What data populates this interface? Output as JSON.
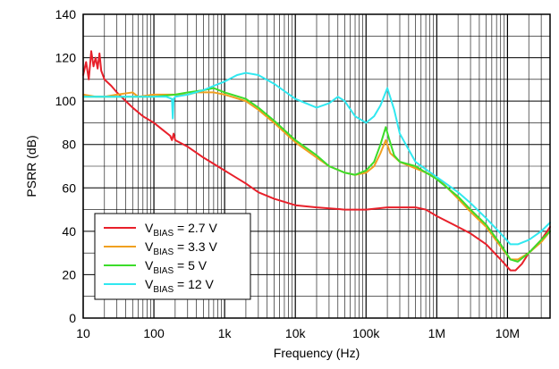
{
  "chart_data": {
    "type": "line",
    "title": "",
    "xlabel": "Frequency (Hz)",
    "ylabel": "PSRR (dB)",
    "xscale": "log",
    "xlim": [
      10,
      40000000
    ],
    "ylim": [
      0,
      140
    ],
    "grid": true,
    "legend_position": "bottom-left",
    "x_ticks": [
      {
        "value": 10,
        "label": "10"
      },
      {
        "value": 100,
        "label": "100"
      },
      {
        "value": 1000,
        "label": "1k"
      },
      {
        "value": 10000,
        "label": "10k"
      },
      {
        "value": 100000,
        "label": "100k"
      },
      {
        "value": 1000000,
        "label": "1M"
      },
      {
        "value": 10000000,
        "label": "10M"
      }
    ],
    "y_ticks": [
      0,
      20,
      40,
      60,
      80,
      100,
      120,
      140
    ],
    "series": [
      {
        "name": "V_BIAS = 2.7 V",
        "label_main": "V",
        "label_sub": "BIAS",
        "label_rest": " = 2.7 V",
        "color": "#e8202a",
        "points": [
          [
            10,
            112
          ],
          [
            11,
            118
          ],
          [
            12,
            110
          ],
          [
            13,
            123
          ],
          [
            14,
            116
          ],
          [
            15,
            120
          ],
          [
            16,
            115
          ],
          [
            17,
            122
          ],
          [
            18,
            114
          ],
          [
            20,
            110
          ],
          [
            25,
            107
          ],
          [
            30,
            104
          ],
          [
            40,
            100
          ],
          [
            50,
            97
          ],
          [
            70,
            93
          ],
          [
            100,
            90
          ],
          [
            130,
            87
          ],
          [
            170,
            84
          ],
          [
            180,
            82
          ],
          [
            190,
            85
          ],
          [
            200,
            82
          ],
          [
            300,
            79
          ],
          [
            500,
            74
          ],
          [
            1000,
            68
          ],
          [
            2000,
            62
          ],
          [
            3000,
            58
          ],
          [
            5000,
            55
          ],
          [
            10000,
            52
          ],
          [
            20000,
            51
          ],
          [
            50000,
            50
          ],
          [
            100000,
            50
          ],
          [
            200000,
            51
          ],
          [
            500000,
            51
          ],
          [
            700000,
            50
          ],
          [
            1000000,
            47
          ],
          [
            2000000,
            42
          ],
          [
            3000000,
            39
          ],
          [
            5000000,
            34
          ],
          [
            8000000,
            27
          ],
          [
            11000000,
            22
          ],
          [
            13000000,
            22
          ],
          [
            16000000,
            25
          ],
          [
            20000000,
            30
          ],
          [
            30000000,
            36
          ],
          [
            40000000,
            42
          ]
        ]
      },
      {
        "name": "V_BIAS = 3.3 V",
        "label_main": "V",
        "label_sub": "BIAS",
        "label_rest": " = 3.3 V",
        "color": "#f0a020",
        "points": [
          [
            10,
            103
          ],
          [
            15,
            102
          ],
          [
            20,
            102
          ],
          [
            30,
            103
          ],
          [
            50,
            104
          ],
          [
            60,
            102
          ],
          [
            100,
            103
          ],
          [
            200,
            103
          ],
          [
            300,
            103
          ],
          [
            400,
            104
          ],
          [
            500,
            104
          ],
          [
            700,
            104
          ],
          [
            1000,
            103
          ],
          [
            2000,
            100
          ],
          [
            3000,
            96
          ],
          [
            5000,
            90
          ],
          [
            10000,
            81
          ],
          [
            20000,
            74
          ],
          [
            30000,
            70
          ],
          [
            50000,
            67
          ],
          [
            70000,
            66
          ],
          [
            100000,
            67
          ],
          [
            130000,
            70
          ],
          [
            160000,
            76
          ],
          [
            190000,
            82
          ],
          [
            220000,
            76
          ],
          [
            300000,
            72
          ],
          [
            500000,
            69
          ],
          [
            1000000,
            65
          ],
          [
            2000000,
            55
          ],
          [
            3000000,
            49
          ],
          [
            5000000,
            42
          ],
          [
            8000000,
            33
          ],
          [
            11000000,
            27
          ],
          [
            14000000,
            27
          ],
          [
            20000000,
            30
          ],
          [
            30000000,
            35
          ],
          [
            40000000,
            40
          ]
        ]
      },
      {
        "name": "V_BIAS = 5 V",
        "label_main": "V",
        "label_sub": "BIAS",
        "label_rest": " = 5 V",
        "color": "#3cdc2a",
        "points": [
          [
            10,
            102
          ],
          [
            20,
            102
          ],
          [
            50,
            102
          ],
          [
            100,
            102
          ],
          [
            200,
            103
          ],
          [
            300,
            104
          ],
          [
            500,
            105
          ],
          [
            700,
            106
          ],
          [
            1000,
            104
          ],
          [
            2000,
            101
          ],
          [
            3000,
            97
          ],
          [
            5000,
            91
          ],
          [
            10000,
            82
          ],
          [
            20000,
            75
          ],
          [
            30000,
            70
          ],
          [
            50000,
            67
          ],
          [
            70000,
            66
          ],
          [
            100000,
            68
          ],
          [
            130000,
            72
          ],
          [
            160000,
            80
          ],
          [
            190000,
            88
          ],
          [
            210000,
            83
          ],
          [
            250000,
            75
          ],
          [
            300000,
            72
          ],
          [
            500000,
            70
          ],
          [
            1000000,
            64
          ],
          [
            2000000,
            56
          ],
          [
            3000000,
            50
          ],
          [
            5000000,
            43
          ],
          [
            8000000,
            34
          ],
          [
            11000000,
            27
          ],
          [
            14000000,
            26
          ],
          [
            20000000,
            30
          ],
          [
            30000000,
            36
          ],
          [
            40000000,
            40
          ]
        ]
      },
      {
        "name": "V_BIAS = 12 V",
        "label_main": "V",
        "label_sub": "BIAS",
        "label_rest": " = 12 V",
        "color": "#30e8f0",
        "points": [
          [
            10,
            102
          ],
          [
            20,
            102
          ],
          [
            50,
            102
          ],
          [
            100,
            102
          ],
          [
            150,
            102
          ],
          [
            180,
            101
          ],
          [
            185,
            92
          ],
          [
            190,
            101
          ],
          [
            200,
            102
          ],
          [
            300,
            103
          ],
          [
            500,
            105
          ],
          [
            700,
            107
          ],
          [
            1000,
            109
          ],
          [
            1500,
            112
          ],
          [
            2000,
            113
          ],
          [
            3000,
            112
          ],
          [
            5000,
            108
          ],
          [
            10000,
            101
          ],
          [
            20000,
            97
          ],
          [
            30000,
            99
          ],
          [
            40000,
            102
          ],
          [
            50000,
            100
          ],
          [
            70000,
            93
          ],
          [
            100000,
            90
          ],
          [
            130000,
            93
          ],
          [
            160000,
            98
          ],
          [
            200000,
            106
          ],
          [
            250000,
            96
          ],
          [
            300000,
            85
          ],
          [
            500000,
            72
          ],
          [
            1000000,
            65
          ],
          [
            2000000,
            58
          ],
          [
            3000000,
            53
          ],
          [
            5000000,
            46
          ],
          [
            8000000,
            39
          ],
          [
            11000000,
            34
          ],
          [
            14000000,
            34
          ],
          [
            20000000,
            36
          ],
          [
            30000000,
            40
          ],
          [
            40000000,
            44
          ]
        ]
      }
    ]
  }
}
